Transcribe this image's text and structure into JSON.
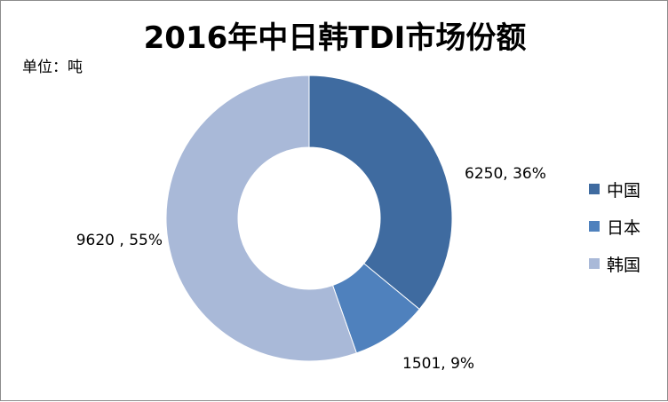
{
  "chart_data": {
    "type": "pie",
    "title": "2016年中日韩TDI市场份额",
    "unit_label": "单位：吨",
    "slices": [
      {
        "name": "中国",
        "value": 6250,
        "percent": 36,
        "label": "6250, 36%",
        "color": "#3f6ba0"
      },
      {
        "name": "日本",
        "value": 1501,
        "percent": 9,
        "label": "1501, 9%",
        "color": "#4f81bd"
      },
      {
        "name": "韩国",
        "value": 9620,
        "percent": 55,
        "label": "9620 , 55%",
        "color": "#a9b9d8"
      }
    ],
    "donut": true,
    "legend_position": "right"
  }
}
